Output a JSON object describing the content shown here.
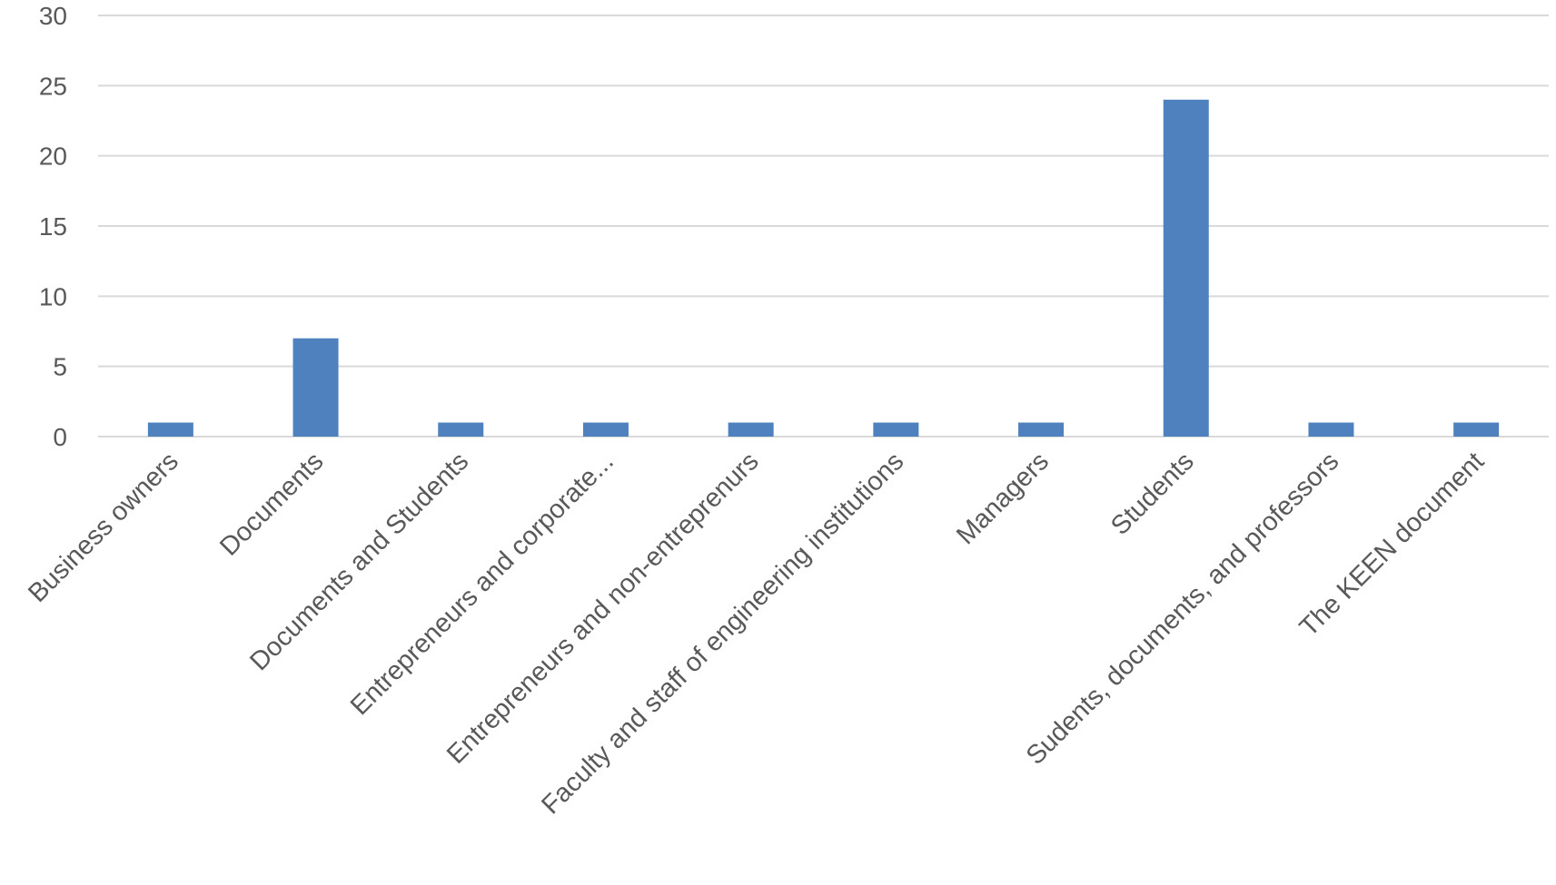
{
  "chart_data": {
    "type": "bar",
    "title": "",
    "xlabel": "",
    "ylabel": "",
    "categories": [
      "Business owners",
      "Documents",
      "Documents and Students",
      "Entrepreneurs and corporate...",
      "Entrepreneurs and non-entreprenurs",
      "Faculty and staff of engineering institutions",
      "Managers",
      "Students",
      "Sudents, documents, and professors",
      "The KEEN document"
    ],
    "series": [
      {
        "values": [
          1,
          7,
          1,
          1,
          1,
          1,
          1,
          24,
          1,
          1
        ],
        "color": "#4e81bd"
      }
    ],
    "ylim": [
      0,
      30
    ],
    "yticks": [
      0,
      5,
      10,
      15,
      20,
      25,
      30
    ],
    "grid": true,
    "legend": "none"
  }
}
